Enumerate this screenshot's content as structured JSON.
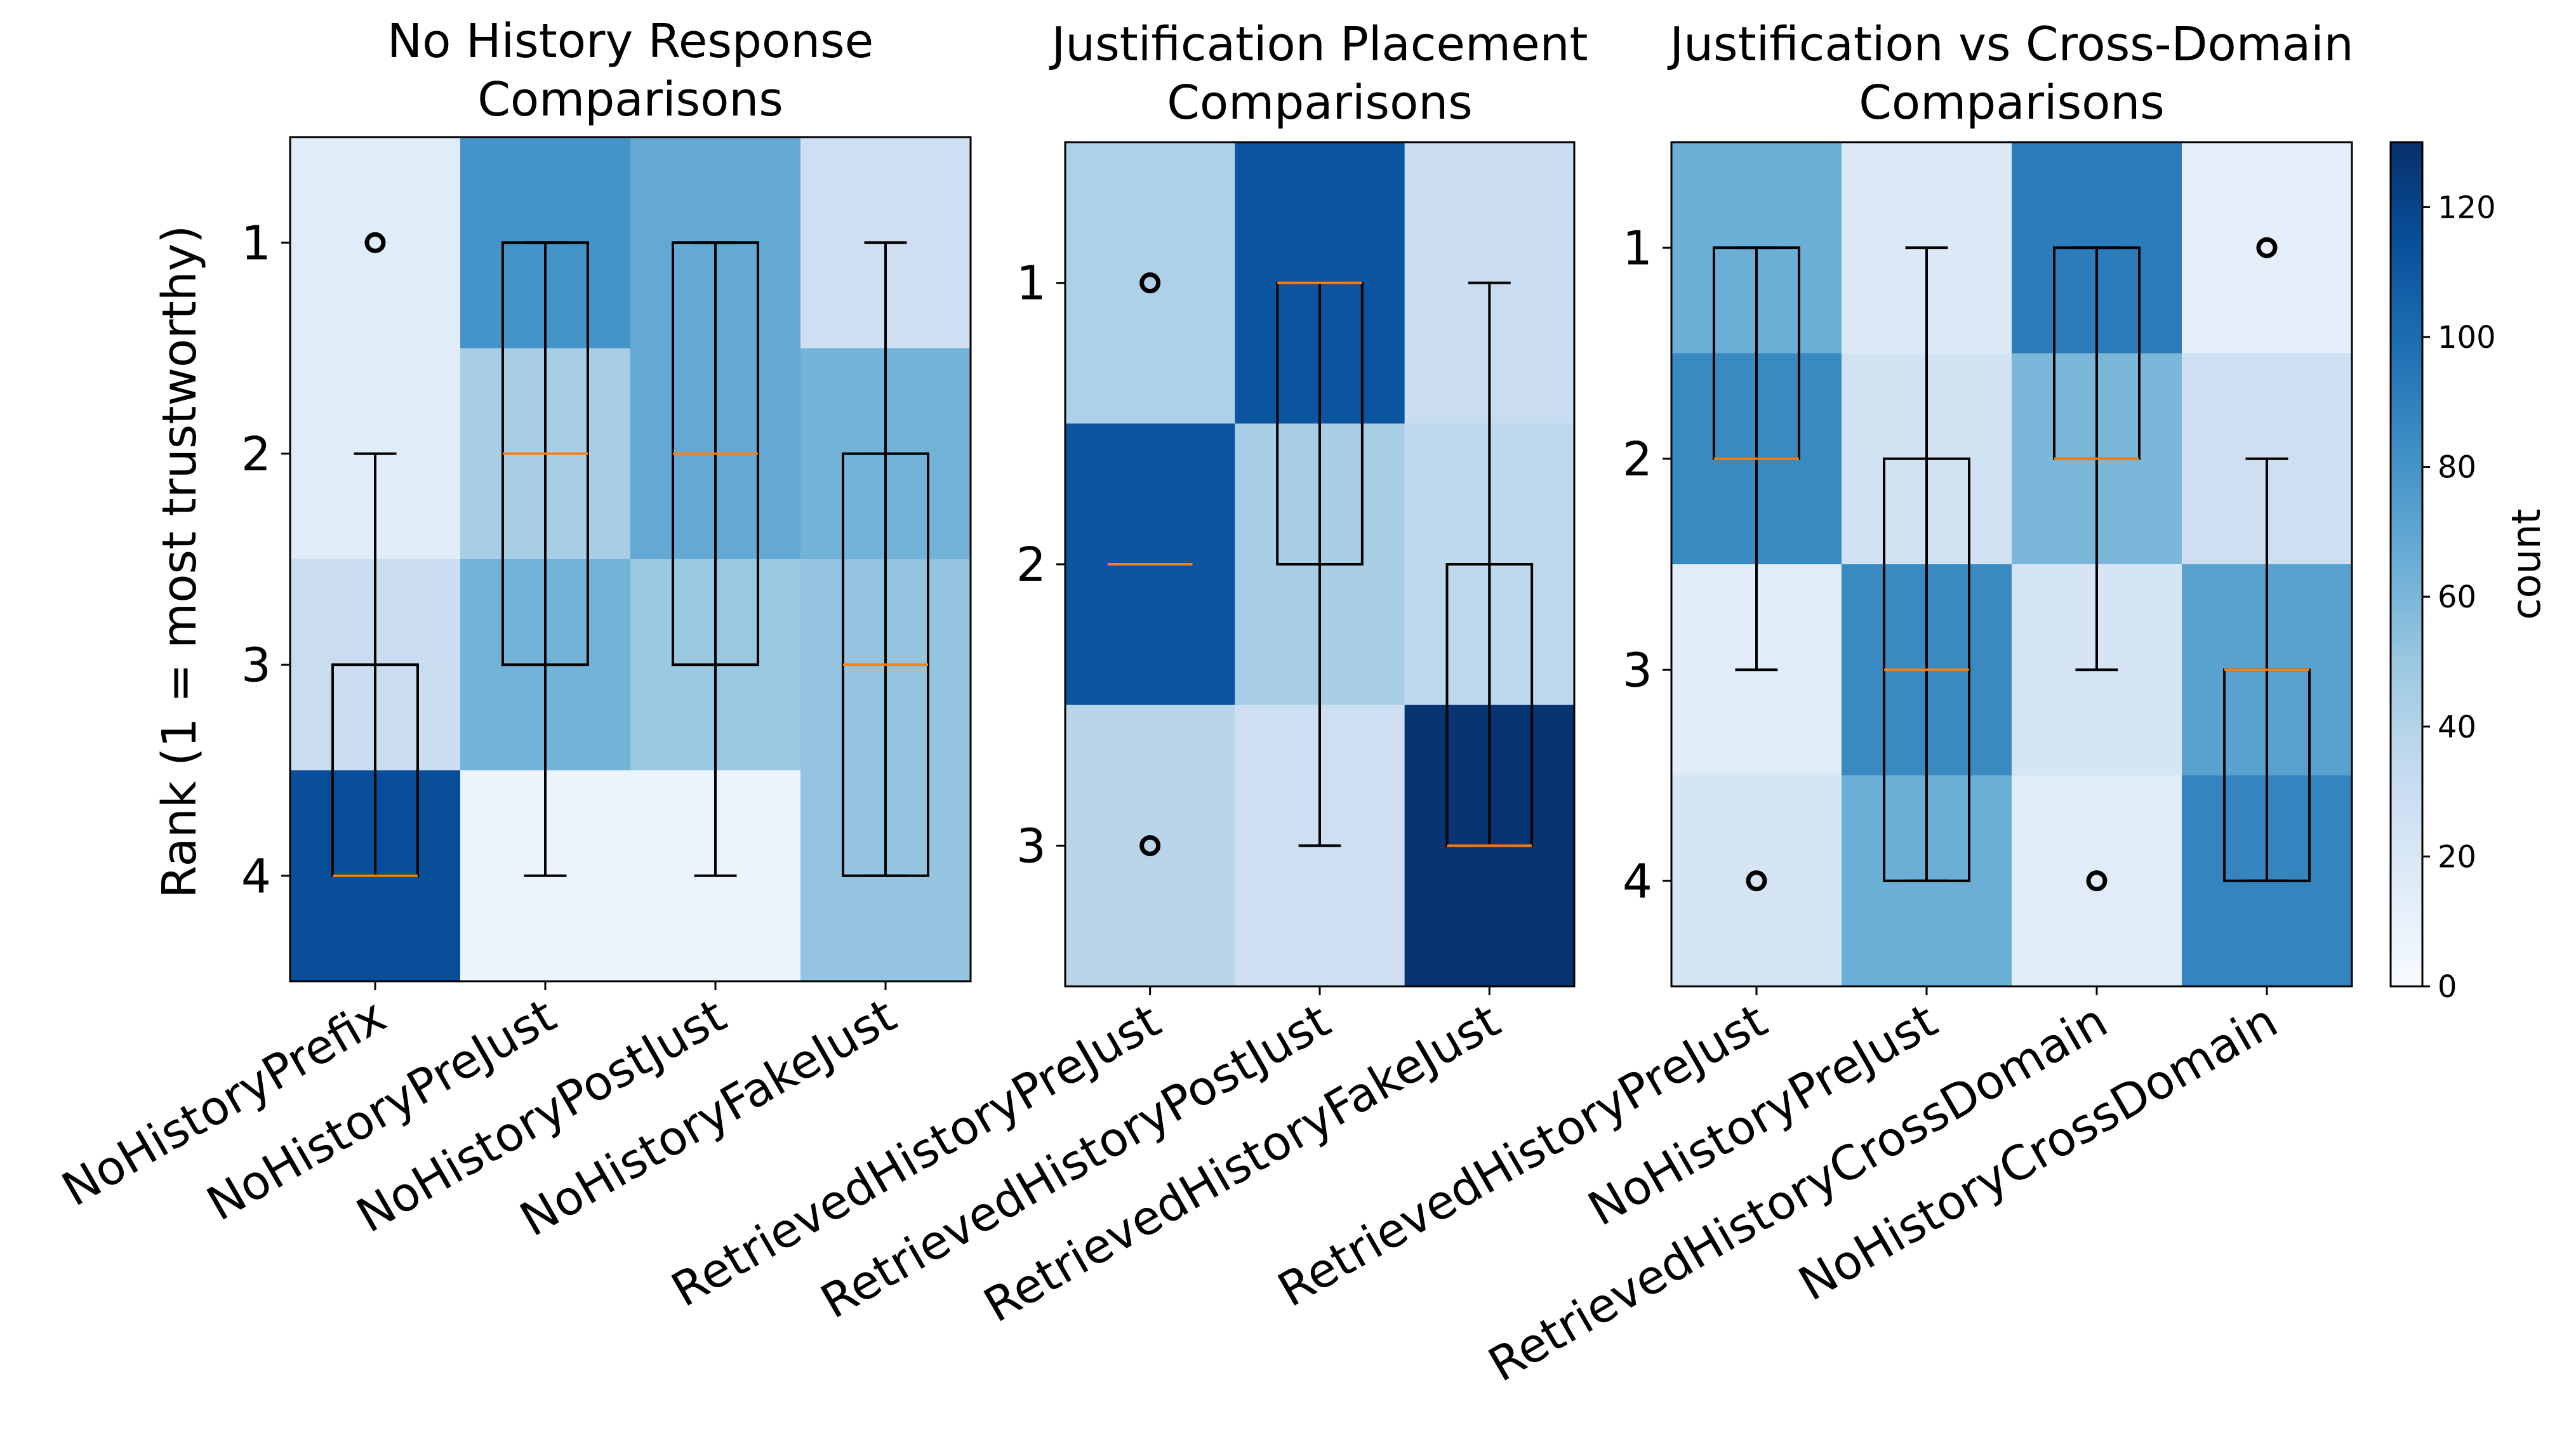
{
  "chart_data": [
    {
      "type": "heatmap",
      "overlay": "boxplot",
      "title": "No History Response Comparisons",
      "title_lines": [
        "No History Response",
        "Comparisons"
      ],
      "ylabel": "Rank (1 = most trustworthy)",
      "xlabel": "",
      "categories": [
        "NoHistoryPrefix",
        "NoHistoryPreJust",
        "NoHistoryPostJust",
        "NoHistoryFakeJust"
      ],
      "ranks": [
        1,
        2,
        3,
        4
      ],
      "ylim": [
        0.5,
        4.5
      ],
      "y_inverted": true,
      "counts": [
        [
          15,
          80,
          68,
          28
        ],
        [
          15,
          45,
          68,
          62
        ],
        [
          30,
          62,
          50,
          52
        ],
        [
          115,
          8,
          8,
          52
        ]
      ],
      "boxplots": [
        {
          "category": "NoHistoryPrefix",
          "q1": 3,
          "median": 4,
          "q3": 4,
          "whisker_low": 2,
          "whisker_high": 4,
          "outliers": [
            1
          ]
        },
        {
          "category": "NoHistoryPreJust",
          "q1": 1,
          "median": 2,
          "q3": 3,
          "whisker_low": 1,
          "whisker_high": 4,
          "outliers": []
        },
        {
          "category": "NoHistoryPostJust",
          "q1": 1,
          "median": 2,
          "q3": 3,
          "whisker_low": 1,
          "whisker_high": 4,
          "outliers": []
        },
        {
          "category": "NoHistoryFakeJust",
          "q1": 2,
          "median": 3,
          "q3": 4,
          "whisker_low": 1,
          "whisker_high": 4,
          "outliers": []
        }
      ]
    },
    {
      "type": "heatmap",
      "overlay": "boxplot",
      "title": "Justification Placement Comparisons",
      "title_lines": [
        "Justification Placement",
        "Comparisons"
      ],
      "ylabel": "",
      "xlabel": "",
      "categories": [
        "RetrievedHistoryPreJust",
        "RetrievedHistoryPostJust",
        "RetrievedHistoryFakeJust"
      ],
      "ranks": [
        1,
        2,
        3
      ],
      "ylim": [
        0.5,
        3.5
      ],
      "y_inverted": true,
      "counts": [
        [
          42,
          112,
          30
        ],
        [
          112,
          45,
          35
        ],
        [
          38,
          28,
          128
        ]
      ],
      "boxplots": [
        {
          "category": "RetrievedHistoryPreJust",
          "q1": 2,
          "median": 2,
          "q3": 2,
          "whisker_low": 2,
          "whisker_high": 2,
          "outliers": [
            1,
            3
          ]
        },
        {
          "category": "RetrievedHistoryPostJust",
          "q1": 1,
          "median": 1,
          "q3": 2,
          "whisker_low": 1,
          "whisker_high": 3,
          "outliers": []
        },
        {
          "category": "RetrievedHistoryFakeJust",
          "q1": 2,
          "median": 3,
          "q3": 3,
          "whisker_low": 1,
          "whisker_high": 3,
          "outliers": []
        }
      ]
    },
    {
      "type": "heatmap",
      "overlay": "boxplot",
      "title": "Justification vs Cross-Domain Comparisons",
      "title_lines": [
        "Justification vs Cross-Domain",
        "Comparisons"
      ],
      "ylabel": "",
      "xlabel": "",
      "categories": [
        "RetrievedHistoryPreJust",
        "NoHistoryPreJust",
        "RetrievedHistoryCrossDomain",
        "NoHistoryCrossDomain"
      ],
      "ranks": [
        1,
        2,
        3,
        4
      ],
      "ylim": [
        0.5,
        4.5
      ],
      "y_inverted": true,
      "counts": [
        [
          65,
          18,
          92,
          12
        ],
        [
          85,
          25,
          60,
          28
        ],
        [
          15,
          85,
          22,
          72
        ],
        [
          22,
          65,
          15,
          88
        ]
      ],
      "boxplots": [
        {
          "category": "RetrievedHistoryPreJust",
          "q1": 1,
          "median": 2,
          "q3": 2,
          "whisker_low": 1,
          "whisker_high": 3,
          "outliers": [
            4
          ]
        },
        {
          "category": "NoHistoryPreJust",
          "q1": 2,
          "median": 3,
          "q3": 4,
          "whisker_low": 1,
          "whisker_high": 4,
          "outliers": []
        },
        {
          "category": "RetrievedHistoryCrossDomain",
          "q1": 1,
          "median": 2,
          "q3": 2,
          "whisker_low": 1,
          "whisker_high": 3,
          "outliers": [
            4
          ]
        },
        {
          "category": "NoHistoryCrossDomain",
          "q1": 3,
          "median": 3,
          "q3": 4,
          "whisker_low": 2,
          "whisker_high": 4,
          "outliers": [
            1
          ]
        }
      ]
    }
  ],
  "colorbar": {
    "label": "count",
    "min": 0,
    "max": 130,
    "ticks": [
      0,
      20,
      40,
      60,
      80,
      100,
      120
    ],
    "colormap": "Blues"
  },
  "colors": {
    "box_edge": "#000000",
    "median": "#ff7f0e"
  }
}
